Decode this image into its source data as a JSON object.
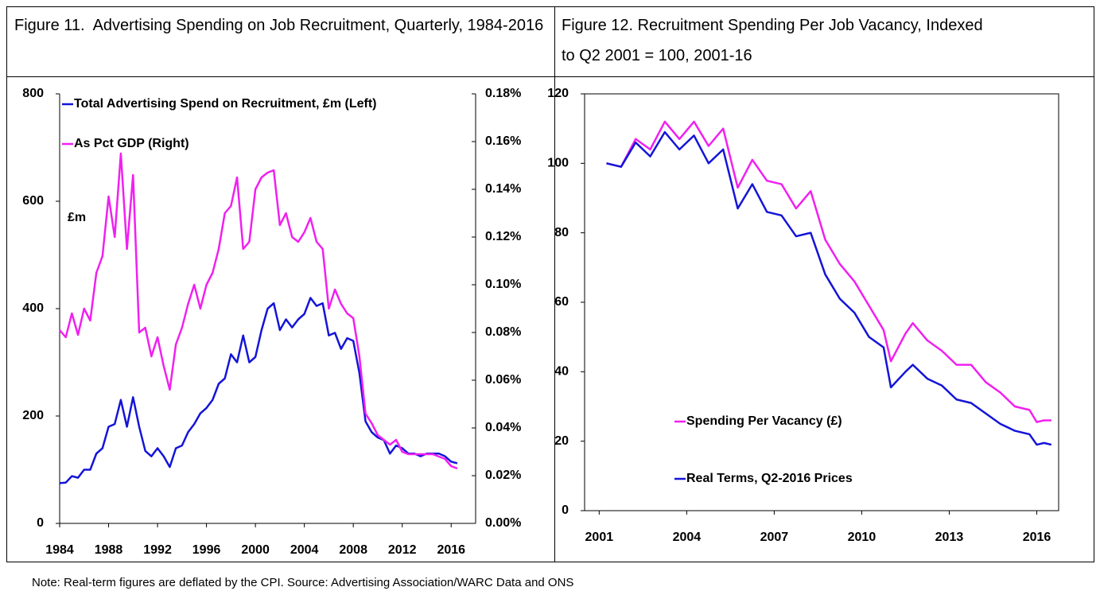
{
  "chart_data": [
    {
      "type": "line",
      "title": "Figure 11.  Advertising Spending on Job Recruitment, Quarterly, 1984-2016",
      "annotation": "£m",
      "legend": "upper left",
      "xlim": [
        1984,
        2018
      ],
      "xticks": [
        1984,
        1988,
        1992,
        1996,
        2000,
        2004,
        2008,
        2012,
        2016
      ],
      "ylim": [
        0,
        800
      ],
      "yticks": [
        0,
        200,
        400,
        600,
        800
      ],
      "y2lim": [
        0,
        0.18
      ],
      "y2ticks": [
        {
          "value": 0,
          "label": "0.00%"
        },
        {
          "value": 0.02,
          "label": "0.02%"
        },
        {
          "value": 0.04,
          "label": "0.04%"
        },
        {
          "value": 0.06,
          "label": "0.06%"
        },
        {
          "value": 0.08,
          "label": "0.08%"
        },
        {
          "value": 0.1,
          "label": "0.10%"
        },
        {
          "value": 0.12,
          "label": "0.12%"
        },
        {
          "value": 0.14,
          "label": "0.14%"
        },
        {
          "value": 0.16,
          "label": "0.16%"
        },
        {
          "value": 0.18,
          "label": "0.18%"
        }
      ],
      "x": [
        1984,
        1984.5,
        1985,
        1985.5,
        1986,
        1986.5,
        1987,
        1987.5,
        1988,
        1988.5,
        1989,
        1989.5,
        1990,
        1990.5,
        1991,
        1991.5,
        1992,
        1992.5,
        1993,
        1993.5,
        1994,
        1994.5,
        1995,
        1995.5,
        1996,
        1996.5,
        1997,
        1997.5,
        1998,
        1998.5,
        1999,
        1999.5,
        2000,
        2000.5,
        2001,
        2001.5,
        2002,
        2002.5,
        2003,
        2003.5,
        2004,
        2004.5,
        2005,
        2005.5,
        2006,
        2006.5,
        2007,
        2007.5,
        2008,
        2008.5,
        2009,
        2009.5,
        2010,
        2010.5,
        2011,
        2011.5,
        2012,
        2012.5,
        2013,
        2013.5,
        2014,
        2014.5,
        2015,
        2015.5,
        2016,
        2016.5
      ],
      "series": [
        {
          "name": "Total Advertising Spend on Recruitment, £m (Left)",
          "color": "#1414d8",
          "axis": "y",
          "values": [
            75,
            76,
            88,
            85,
            100,
            100,
            130,
            140,
            180,
            185,
            230,
            180,
            235,
            180,
            135,
            125,
            140,
            125,
            105,
            140,
            145,
            170,
            185,
            205,
            215,
            230,
            260,
            270,
            315,
            300,
            350,
            300,
            310,
            360,
            400,
            410,
            360,
            380,
            365,
            380,
            390,
            420,
            405,
            410,
            350,
            355,
            325,
            345,
            340,
            280,
            190,
            170,
            160,
            155,
            130,
            145,
            140,
            130,
            130,
            125,
            130,
            130,
            130,
            125,
            115,
            112
          ]
        },
        {
          "name": "As Pct GDP (Right)",
          "color": "#f020f0",
          "axis": "y2",
          "values": [
            0.081,
            0.078,
            0.088,
            0.079,
            0.09,
            0.085,
            0.105,
            0.112,
            0.137,
            0.12,
            0.155,
            0.115,
            0.146,
            0.08,
            0.082,
            0.07,
            0.078,
            0.066,
            0.056,
            0.075,
            0.082,
            0.092,
            0.1,
            0.09,
            0.1,
            0.105,
            0.115,
            0.13,
            0.133,
            0.145,
            0.115,
            0.118,
            0.14,
            0.145,
            0.147,
            0.148,
            0.125,
            0.13,
            0.12,
            0.118,
            0.122,
            0.128,
            0.118,
            0.115,
            0.09,
            0.098,
            0.092,
            0.088,
            0.086,
            0.07,
            0.046,
            0.042,
            0.037,
            0.035,
            0.033,
            0.035,
            0.03,
            0.029,
            0.029,
            0.029,
            0.029,
            0.029,
            0.028,
            0.027,
            0.024,
            0.023
          ]
        }
      ]
    },
    {
      "type": "line",
      "title": "Figure 12. Recruitment Spending Per Job Vacancy, Indexed to Q2 2001 = 100, 2001-16",
      "legend": "lower left",
      "frame": true,
      "xlim": [
        2000.5,
        2016.75
      ],
      "xticks": [
        2001,
        2004,
        2007,
        2010,
        2013,
        2016
      ],
      "ylim": [
        0,
        120
      ],
      "yticks": [
        0,
        20,
        40,
        60,
        80,
        100,
        120
      ],
      "x": [
        2001.25,
        2001.75,
        2002.25,
        2002.75,
        2003.25,
        2003.75,
        2004.25,
        2004.75,
        2005.25,
        2005.75,
        2006.25,
        2006.75,
        2007.25,
        2007.75,
        2008.25,
        2008.75,
        2009.25,
        2009.75,
        2010.25,
        2010.75,
        2011,
        2011.5,
        2011.75,
        2012.25,
        2012.75,
        2013.25,
        2013.75,
        2014.25,
        2014.75,
        2015.25,
        2015.75,
        2016,
        2016.25,
        2016.5
      ],
      "series": [
        {
          "name": "Spending Per Vacancy (£)",
          "color": "#f020f0",
          "axis": "y",
          "values": [
            100,
            99,
            107,
            104,
            112,
            107,
            112,
            105,
            110,
            93,
            101,
            95,
            94,
            87,
            92,
            78,
            71,
            66,
            59,
            52,
            43,
            51,
            54,
            49,
            46,
            42,
            42,
            37,
            34,
            30,
            29,
            25.5,
            26,
            26
          ]
        },
        {
          "name": "Real Terms, Q2-2016 Prices",
          "color": "#1414d8",
          "axis": "y",
          "values": [
            100,
            99,
            106,
            102,
            109,
            104,
            108,
            100,
            104,
            87,
            94,
            86,
            85,
            79,
            80,
            68,
            61,
            57,
            50,
            47,
            35.5,
            40,
            42,
            38,
            36,
            32,
            31,
            28,
            25,
            23,
            22,
            19,
            19.5,
            19
          ]
        }
      ]
    }
  ],
  "note": "Note: Real-term figures are deflated by the CPI. Source: Advertising Association/WARC Data and ONS"
}
